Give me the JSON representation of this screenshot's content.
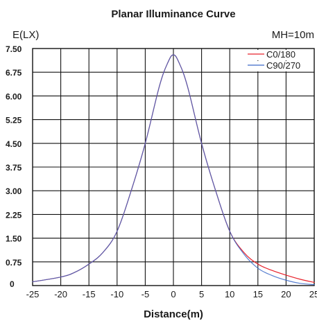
{
  "chart_data": {
    "type": "line",
    "title": "Planar Illuminance Curve",
    "xlabel": "Distance(m)",
    "ylabel": "E(LX)",
    "annotation": "MH=10m",
    "xlim": [
      -25,
      25
    ],
    "ylim": [
      0,
      7.5
    ],
    "x_ticks": [
      -25,
      -20,
      -15,
      -10,
      -5,
      0,
      5,
      10,
      15,
      20,
      25
    ],
    "y_ticks": [
      0,
      0.75,
      1.5,
      2.25,
      3.0,
      3.75,
      4.5,
      5.25,
      6.0,
      6.75,
      7.5
    ],
    "x_tick_labels": [
      "-25",
      "-20",
      "-15",
      "-10",
      "-5",
      "0",
      "5",
      "10",
      "15",
      "20",
      "25"
    ],
    "y_tick_labels": [
      "0",
      "0.75",
      "1.50",
      "2.25",
      "3.00",
      "3.75",
      "4.50",
      "5.25",
      "6.00",
      "6.75",
      "7.50"
    ],
    "grid": true,
    "legend_position": "top-right",
    "x": [
      -25,
      -20,
      -17.5,
      -15,
      -12.5,
      -10,
      -7.5,
      -5,
      -2.5,
      -1,
      0,
      1,
      2.5,
      5,
      7.5,
      10,
      12.5,
      15,
      17.5,
      20,
      22.5,
      25
    ],
    "series": [
      {
        "name": "C0/180",
        "color": "#e8202a",
        "values": [
          0.12,
          0.27,
          0.42,
          0.68,
          1.05,
          1.72,
          3.0,
          4.5,
          6.3,
          7.05,
          7.3,
          7.05,
          6.3,
          4.5,
          3.0,
          1.72,
          1.05,
          0.68,
          0.48,
          0.33,
          0.2,
          0.1
        ]
      },
      {
        "name": "C90/270",
        "color": "#3a68c8",
        "values": [
          0.12,
          0.27,
          0.42,
          0.68,
          1.05,
          1.72,
          3.0,
          4.5,
          6.3,
          7.05,
          7.3,
          7.05,
          6.3,
          4.5,
          3.0,
          1.72,
          1.0,
          0.55,
          0.32,
          0.17,
          0.07,
          0.03
        ]
      }
    ]
  }
}
